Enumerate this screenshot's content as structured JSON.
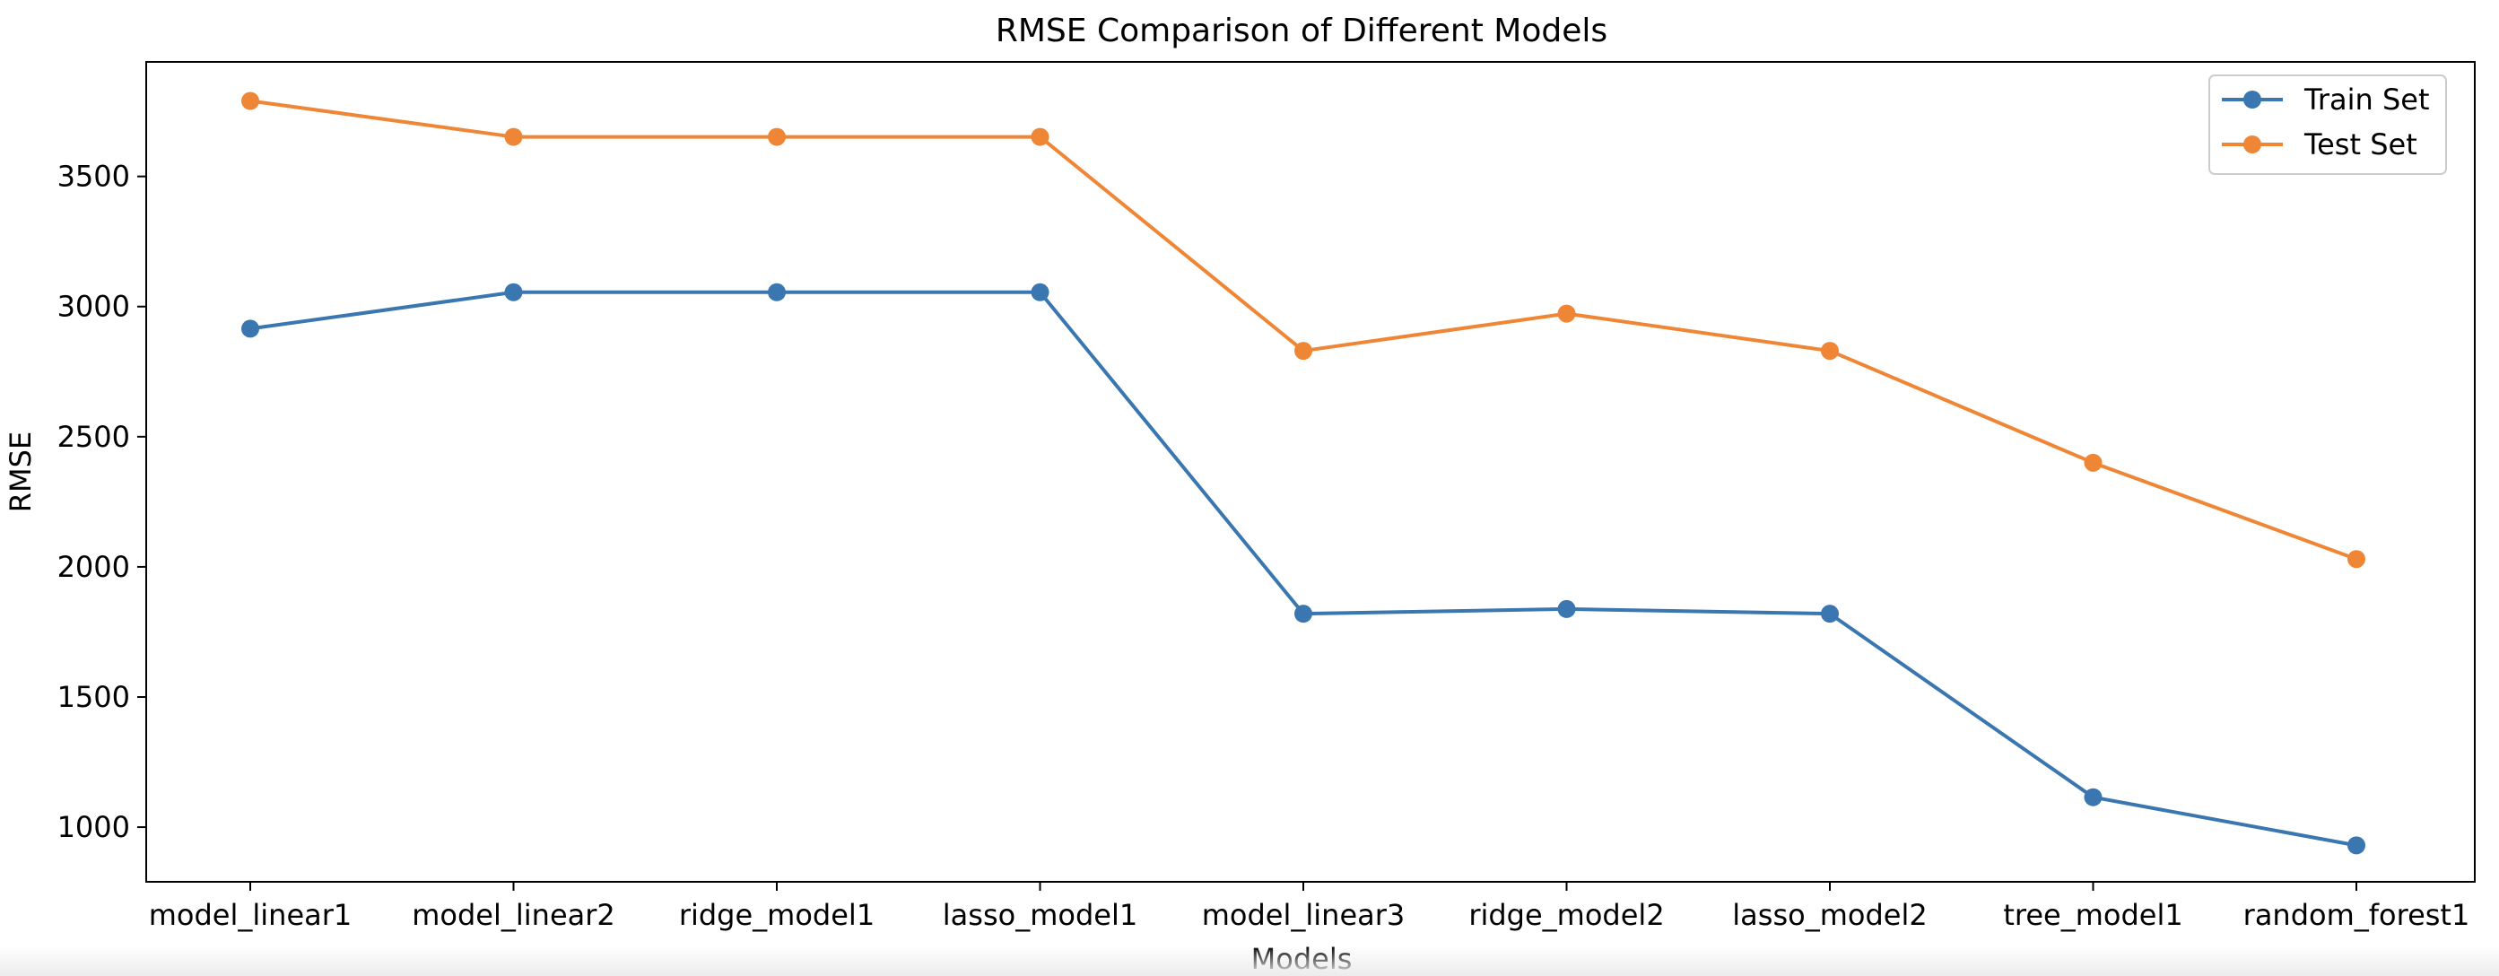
{
  "chart_data": {
    "type": "line",
    "title": "RMSE Comparison of Different Models",
    "xlabel": "Models",
    "ylabel": "RMSE",
    "categories": [
      "model_linear1",
      "model_linear2",
      "ridge_model1",
      "lasso_model1",
      "model_linear3",
      "ridge_model2",
      "lasso_model2",
      "tree_model1",
      "random_forest1"
    ],
    "series": [
      {
        "name": "Train Set",
        "color": "#3a76af",
        "values": [
          2915,
          3055,
          3055,
          3055,
          1820,
          1838,
          1820,
          1115,
          930
        ]
      },
      {
        "name": "Test Set",
        "color": "#ef8636",
        "values": [
          3790,
          3652,
          3652,
          3652,
          2830,
          2973,
          2830,
          2400,
          2030
        ]
      }
    ],
    "ylim": [
      790,
      3940
    ],
    "yticks": [
      1000,
      1500,
      2000,
      2500,
      3000,
      3500
    ],
    "ytick_labels": [
      "1000",
      "1500",
      "2000",
      "2500",
      "3000",
      "3500"
    ],
    "grid": false,
    "legend_position": "upper right",
    "marker": "circle"
  }
}
